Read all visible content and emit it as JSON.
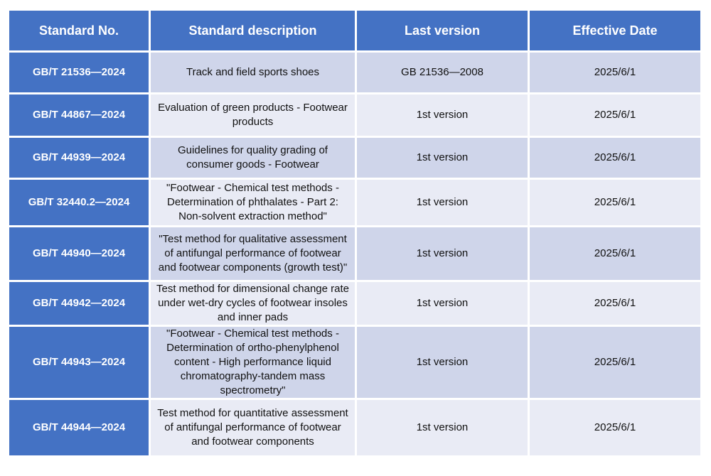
{
  "table": {
    "headers": [
      "Standard No.",
      "Standard description",
      "Last version",
      "Effective Date"
    ],
    "rows": [
      {
        "standard_no": "GB/T 21536—2024",
        "description": "Track and field sports shoes",
        "last_version": "GB 21536—2008",
        "effective_date": "2025/6/1"
      },
      {
        "standard_no": "GB/T 44867—2024",
        "description": "Evaluation of green products - Footwear products",
        "last_version": "1st version",
        "effective_date": "2025/6/1"
      },
      {
        "standard_no": "GB/T 44939—2024",
        "description": "Guidelines for quality grading of consumer goods - Footwear",
        "last_version": "1st version",
        "effective_date": "2025/6/1"
      },
      {
        "standard_no": "GB/T 32440.2—2024",
        "description": "\"Footwear - Chemical test methods - Determination of phthalates - Part 2: Non-solvent extraction method\"",
        "last_version": "1st version",
        "effective_date": "2025/6/1"
      },
      {
        "standard_no": "GB/T 44940—2024",
        "description": "\"Test method for qualitative assessment of antifungal performance of footwear and footwear components (growth test)\"",
        "last_version": "1st version",
        "effective_date": "2025/6/1"
      },
      {
        "standard_no": "GB/T 44942—2024",
        "description": "Test method for dimensional change rate under wet-dry cycles of footwear insoles and inner pads",
        "last_version": "1st version",
        "effective_date": "2025/6/1"
      },
      {
        "standard_no": "GB/T 44943—2024",
        "description": "\"Footwear - Chemical test methods - Determination of ortho-phenylphenol content - High performance liquid chromatography-tandem mass spectrometry\"",
        "last_version": "1st version",
        "effective_date": "2025/6/1"
      },
      {
        "standard_no": "GB/T 44944—2024",
        "description": "Test method for quantitative assessment of antifungal performance of footwear and footwear components",
        "last_version": "1st version",
        "effective_date": "2025/6/1"
      }
    ]
  },
  "colors": {
    "header_bg": "#4472c4",
    "row_odd_bg": "#cfd5ea",
    "row_even_bg": "#e9ebf5"
  }
}
